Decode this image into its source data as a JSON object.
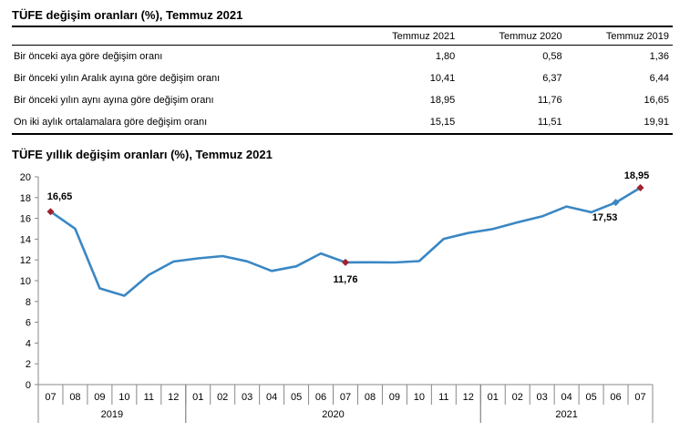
{
  "table": {
    "title": "TÜFE değişim oranları (%), Temmuz 2021",
    "columns": [
      "Temmuz 2021",
      "Temmuz 2020",
      "Temmuz 2019"
    ],
    "rows": [
      {
        "label": "Bir önceki aya göre değişim oranı",
        "values": [
          "1,80",
          "0,58",
          "1,36"
        ]
      },
      {
        "label": "Bir önceki yılın Aralık ayına göre değişim oranı",
        "values": [
          "10,41",
          "6,37",
          "6,44"
        ]
      },
      {
        "label": "Bir önceki yılın aynı ayına göre değişim oranı",
        "values": [
          "18,95",
          "11,76",
          "16,65"
        ]
      },
      {
        "label": "On iki aylık ortalamalara göre değişim oranı",
        "values": [
          "15,15",
          "11,51",
          "19,91"
        ]
      }
    ]
  },
  "chart_data": {
    "type": "line",
    "title": "TÜFE yıllık değişim oranları (%), Temmuz 2021",
    "ylim": [
      0,
      20
    ],
    "yticks": [
      "0",
      "2",
      "4",
      "6",
      "8",
      "10",
      "12",
      "14",
      "16",
      "18",
      "20"
    ],
    "grid": false,
    "line_color": "#3a87c4",
    "marker_color": "#a0222e",
    "categories": [
      "07",
      "08",
      "09",
      "10",
      "11",
      "12",
      "01",
      "02",
      "03",
      "04",
      "05",
      "06",
      "07",
      "08",
      "09",
      "10",
      "11",
      "12",
      "01",
      "02",
      "03",
      "04",
      "05",
      "06",
      "07"
    ],
    "year_groups": [
      {
        "label": "2019",
        "start": 0,
        "count": 6
      },
      {
        "label": "2020",
        "start": 6,
        "count": 12
      },
      {
        "label": "2021",
        "start": 18,
        "count": 7
      }
    ],
    "series": [
      {
        "values": [
          16.65,
          15.01,
          9.26,
          8.55,
          10.56,
          11.84,
          12.15,
          12.37,
          11.86,
          10.94,
          11.39,
          12.62,
          11.76,
          11.77,
          11.75,
          11.89,
          14.03,
          14.6,
          14.97,
          15.61,
          16.19,
          17.14,
          16.59,
          17.53,
          18.95
        ]
      }
    ],
    "annotations": [
      {
        "index": 0,
        "label": "16,65",
        "color": "#a0222e"
      },
      {
        "index": 12,
        "label": "11,76",
        "color": "#a0222e"
      },
      {
        "index": 23,
        "label": "17,53",
        "color": "#3a87c4"
      },
      {
        "index": 24,
        "label": "18,95",
        "color": "#a0222e"
      }
    ]
  }
}
